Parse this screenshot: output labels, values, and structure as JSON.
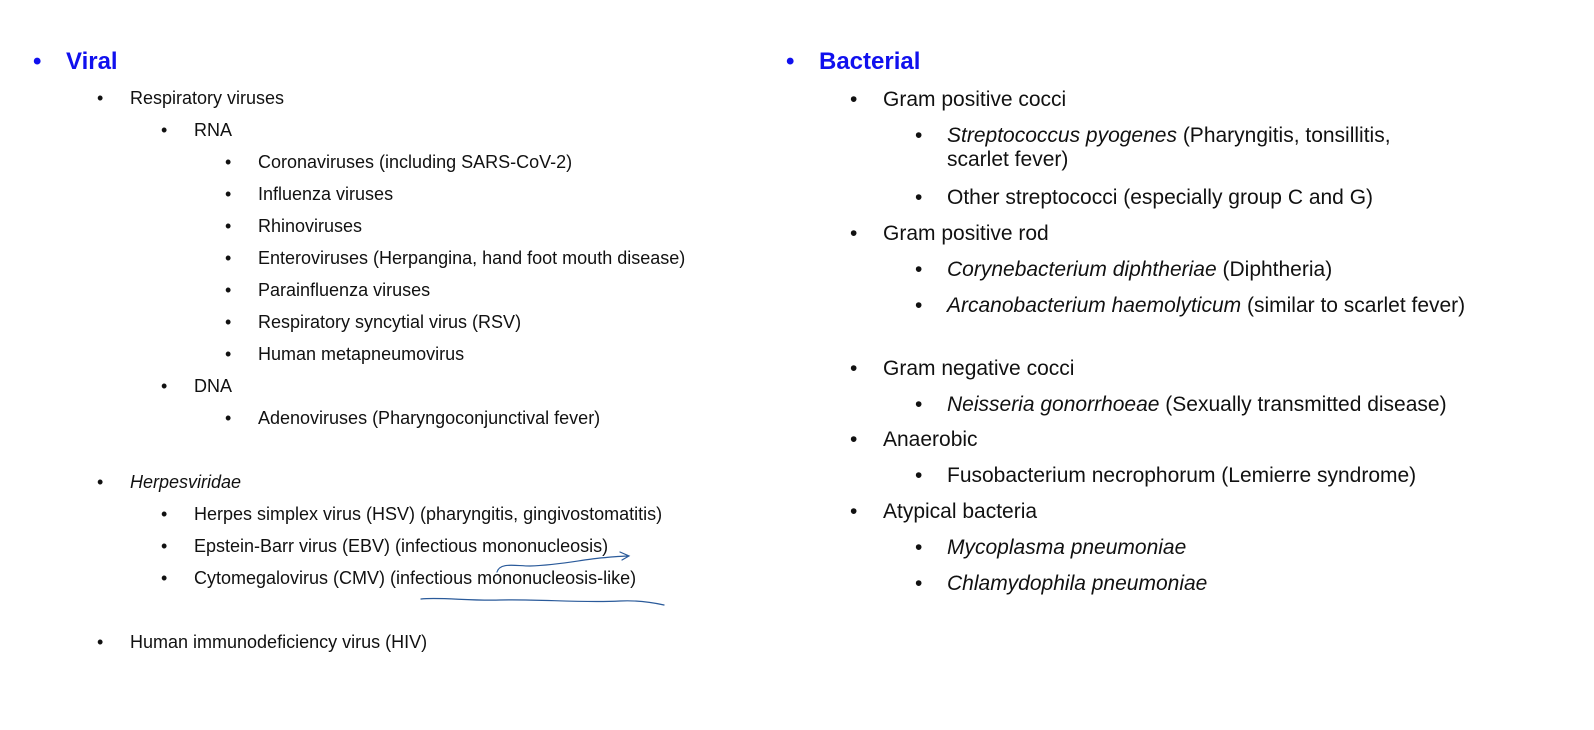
{
  "viral": {
    "heading": "Viral",
    "respiratory": "Respiratory viruses",
    "rna": "RNA",
    "rna_items": [
      "Coronaviruses (including SARS-CoV-2)",
      "Influenza viruses",
      "Rhinoviruses",
      "Enteroviruses (Herpangina, hand foot mouth disease)",
      "Parainfluenza viruses",
      "Respiratory syncytial virus (RSV)",
      "Human metapneumovirus"
    ],
    "dna": "DNA",
    "dna_items": [
      "Adenoviruses (Pharyngoconjunctival fever)"
    ],
    "herpes": "Herpesviridae",
    "herpes_items": [
      "Herpes simplex virus (HSV) (pharyngitis, gingivostomatitis)",
      "Epstein-Barr virus (EBV) (infectious mononucleosis)",
      "Cytomegalovirus (CMV) (infectious mononucleosis-like)"
    ],
    "hiv": "Human immunodeficiency virus (HIV)"
  },
  "bacterial": {
    "heading": "Bacterial",
    "gpc": "Gram positive cocci",
    "gpc_items": [
      {
        "italic": "Streptococcus pyogenes",
        "rest": " (Pharyngitis, tonsillitis, scarlet fever)"
      },
      {
        "italic": "",
        "rest": "Other streptococci (especially group C and G)"
      }
    ],
    "gpr": "Gram positive rod",
    "gpr_items": [
      {
        "italic": "Corynebacterium diphtheriae",
        "rest": " (Diphtheria)"
      },
      {
        "italic": "Arcanobacterium haemolyticum",
        "rest": " (similar to scarlet fever)"
      }
    ],
    "gnc": "Gram negative cocci",
    "gnc_items": [
      {
        "italic": "Neisseria gonorrhoeae",
        "rest": " (Sexually transmitted disease)"
      }
    ],
    "anaerobic": "Anaerobic",
    "anaerobic_items": [
      {
        "italic": "",
        "rest": "Fusobacterium necrophorum (Lemierre syndrome)"
      }
    ],
    "atypical": "Atypical bacteria",
    "atypical_items": [
      {
        "italic": "Mycoplasma pneumoniae",
        "rest": ""
      },
      {
        "italic": "Chlamydophila pneumoniae",
        "rest": ""
      }
    ]
  },
  "bullet_char": "•",
  "annotation_color": "#2a5a9a"
}
